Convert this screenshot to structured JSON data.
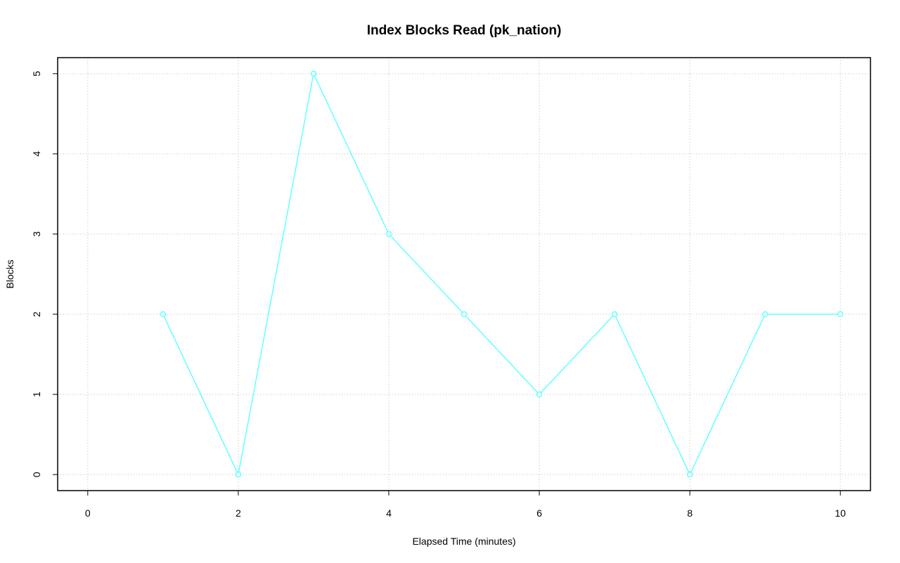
{
  "chart_data": {
    "type": "line",
    "title": "Index Blocks Read (pk_nation)",
    "x_label": "Elapsed Time (minutes)",
    "y_label": "Blocks",
    "x": [
      1,
      2,
      3,
      4,
      5,
      6,
      7,
      8,
      9,
      10
    ],
    "series": [
      {
        "color": "#66ffff",
        "values": [
          2,
          0,
          5,
          3,
          2,
          1,
          2,
          0,
          2,
          2
        ]
      }
    ],
    "xlim": [
      -0.4,
      10.4
    ],
    "xticks": [
      0,
      2,
      4,
      6,
      8,
      10
    ],
    "ylim": [
      -0.2,
      5.2
    ],
    "yticks": [
      0,
      1,
      2,
      3,
      4,
      5
    ],
    "grid": true,
    "markers": true
  }
}
